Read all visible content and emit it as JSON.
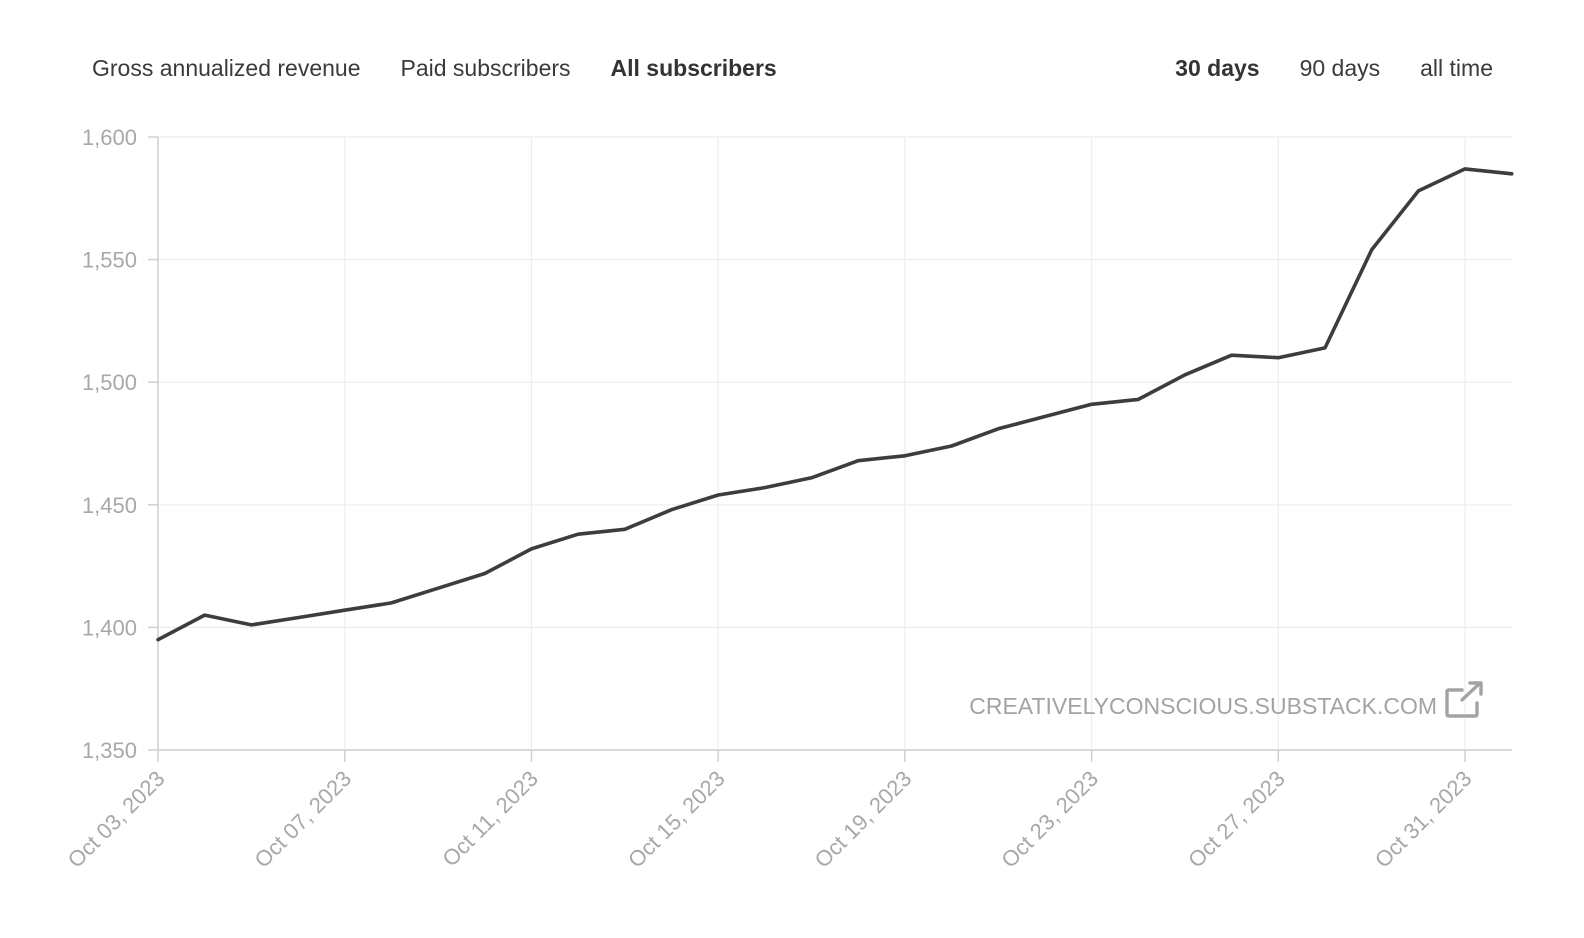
{
  "metric_tabs": [
    {
      "label": "Gross annualized revenue",
      "active": false
    },
    {
      "label": "Paid subscribers",
      "active": false
    },
    {
      "label": "All subscribers",
      "active": true
    }
  ],
  "range_tabs": [
    {
      "label": "30 days",
      "active": true
    },
    {
      "label": "90 days",
      "active": false
    },
    {
      "label": "all time",
      "active": false
    }
  ],
  "watermark": {
    "text": "CREATIVELYCONSCIOUS.SUBSTACK.COM",
    "icon": "external-link-icon"
  },
  "colors": {
    "line": "#3d3d3d",
    "grid": "#eeeeee",
    "axis": "#d0d0d0",
    "tick_text": "#a8a8a8"
  },
  "chart_data": {
    "type": "line",
    "title": "",
    "xlabel": "",
    "ylabel": "",
    "ylim": [
      1350,
      1600
    ],
    "yticks": [
      1350,
      1400,
      1450,
      1500,
      1550,
      1600
    ],
    "ytick_labels": [
      "1,350",
      "1,400",
      "1,450",
      "1,500",
      "1,550",
      "1,600"
    ],
    "x_start": "2023-10-03",
    "x_end": "2023-11-01",
    "xticks": [
      "2023-10-03",
      "2023-10-07",
      "2023-10-11",
      "2023-10-15",
      "2023-10-19",
      "2023-10-23",
      "2023-10-27",
      "2023-10-31"
    ],
    "xtick_labels": [
      "Oct 03, 2023",
      "Oct 07, 2023",
      "Oct 11, 2023",
      "Oct 15, 2023",
      "Oct 19, 2023",
      "Oct 23, 2023",
      "Oct 27, 2023",
      "Oct 31, 2023"
    ],
    "grid": true,
    "series": [
      {
        "x": [
          "2023-10-03",
          "2023-10-04",
          "2023-10-05",
          "2023-10-06",
          "2023-10-07",
          "2023-10-08",
          "2023-10-09",
          "2023-10-10",
          "2023-10-11",
          "2023-10-12",
          "2023-10-13",
          "2023-10-14",
          "2023-10-15",
          "2023-10-16",
          "2023-10-17",
          "2023-10-18",
          "2023-10-19",
          "2023-10-20",
          "2023-10-21",
          "2023-10-22",
          "2023-10-23",
          "2023-10-24",
          "2023-10-25",
          "2023-10-26",
          "2023-10-27",
          "2023-10-28",
          "2023-10-29",
          "2023-10-30",
          "2023-10-31",
          "2023-11-01"
        ],
        "values": [
          1395,
          1405,
          1401,
          1404,
          1407,
          1410,
          1416,
          1422,
          1432,
          1438,
          1440,
          1448,
          1454,
          1457,
          1461,
          1468,
          1470,
          1474,
          1481,
          1486,
          1491,
          1493,
          1503,
          1511,
          1510,
          1514,
          1554,
          1578,
          1587,
          1585
        ]
      }
    ]
  }
}
